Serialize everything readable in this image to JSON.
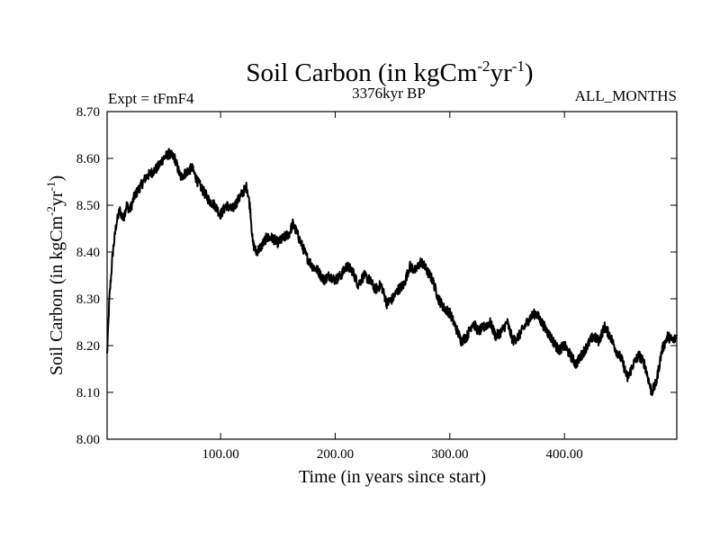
{
  "chart_data": {
    "type": "line",
    "title": "Soil Carbon (in kgCm",
    "title_sup1": "-2",
    "title_mid": "yr",
    "title_sup2": "-1",
    "title_end": ")",
    "subtitle_left": "Expt = tFmF4",
    "subtitle_center": "3376kyr BP",
    "subtitle_right": "ALL_MONTHS",
    "xlabel": "Time (in years since start)",
    "ylabel_main": "Soil Carbon (in kgCm",
    "ylabel_sup1": "-2",
    "ylabel_mid": "yr",
    "ylabel_sup2": "-1",
    "ylabel_end": ")",
    "xlim": [
      1,
      498
    ],
    "ylim": [
      8.0,
      8.7
    ],
    "xticks": [
      100,
      200,
      300,
      400
    ],
    "xtick_labels": [
      "100.00",
      "200.00",
      "300.00",
      "400.00"
    ],
    "yticks": [
      8.0,
      8.1,
      8.2,
      8.3,
      8.4,
      8.5,
      8.6,
      8.7
    ],
    "ytick_labels": [
      "8.00",
      "8.10",
      "8.20",
      "8.30",
      "8.40",
      "8.50",
      "8.60",
      "8.70"
    ],
    "series": [
      {
        "name": "Soil Carbon",
        "color": "#000000",
        "x": [
          1,
          3,
          6,
          9,
          12,
          15,
          18,
          21,
          25,
          30,
          35,
          40,
          45,
          50,
          55,
          60,
          65,
          70,
          75,
          80,
          85,
          90,
          95,
          100,
          105,
          110,
          115,
          120,
          123,
          126,
          128,
          131,
          135,
          140,
          145,
          150,
          155,
          160,
          163,
          165,
          170,
          175,
          180,
          185,
          190,
          195,
          200,
          205,
          210,
          215,
          220,
          225,
          230,
          235,
          240,
          245,
          250,
          255,
          260,
          265,
          270,
          275,
          280,
          285,
          290,
          295,
          300,
          305,
          310,
          315,
          320,
          325,
          330,
          335,
          340,
          345,
          350,
          355,
          360,
          365,
          370,
          375,
          380,
          385,
          390,
          395,
          400,
          405,
          410,
          415,
          420,
          425,
          430,
          435,
          440,
          445,
          450,
          455,
          460,
          465,
          470,
          473,
          476,
          480,
          485,
          490,
          495,
          498
        ],
        "y": [
          8.18,
          8.3,
          8.4,
          8.46,
          8.49,
          8.47,
          8.5,
          8.49,
          8.52,
          8.54,
          8.56,
          8.57,
          8.58,
          8.6,
          8.61,
          8.6,
          8.56,
          8.57,
          8.58,
          8.55,
          8.53,
          8.51,
          8.5,
          8.48,
          8.5,
          8.49,
          8.51,
          8.53,
          8.54,
          8.49,
          8.42,
          8.4,
          8.41,
          8.43,
          8.43,
          8.42,
          8.43,
          8.44,
          8.46,
          8.45,
          8.42,
          8.39,
          8.37,
          8.36,
          8.34,
          8.35,
          8.34,
          8.35,
          8.37,
          8.36,
          8.33,
          8.35,
          8.34,
          8.32,
          8.33,
          8.29,
          8.3,
          8.32,
          8.33,
          8.37,
          8.36,
          8.38,
          8.36,
          8.34,
          8.3,
          8.28,
          8.27,
          8.24,
          8.21,
          8.22,
          8.25,
          8.23,
          8.24,
          8.25,
          8.22,
          8.23,
          8.25,
          8.21,
          8.22,
          8.24,
          8.26,
          8.27,
          8.25,
          8.23,
          8.21,
          8.19,
          8.2,
          8.18,
          8.16,
          8.18,
          8.2,
          8.22,
          8.21,
          8.24,
          8.22,
          8.19,
          8.17,
          8.13,
          8.16,
          8.18,
          8.16,
          8.13,
          8.1,
          8.12,
          8.19,
          8.22,
          8.21,
          8.22
        ]
      }
    ]
  }
}
